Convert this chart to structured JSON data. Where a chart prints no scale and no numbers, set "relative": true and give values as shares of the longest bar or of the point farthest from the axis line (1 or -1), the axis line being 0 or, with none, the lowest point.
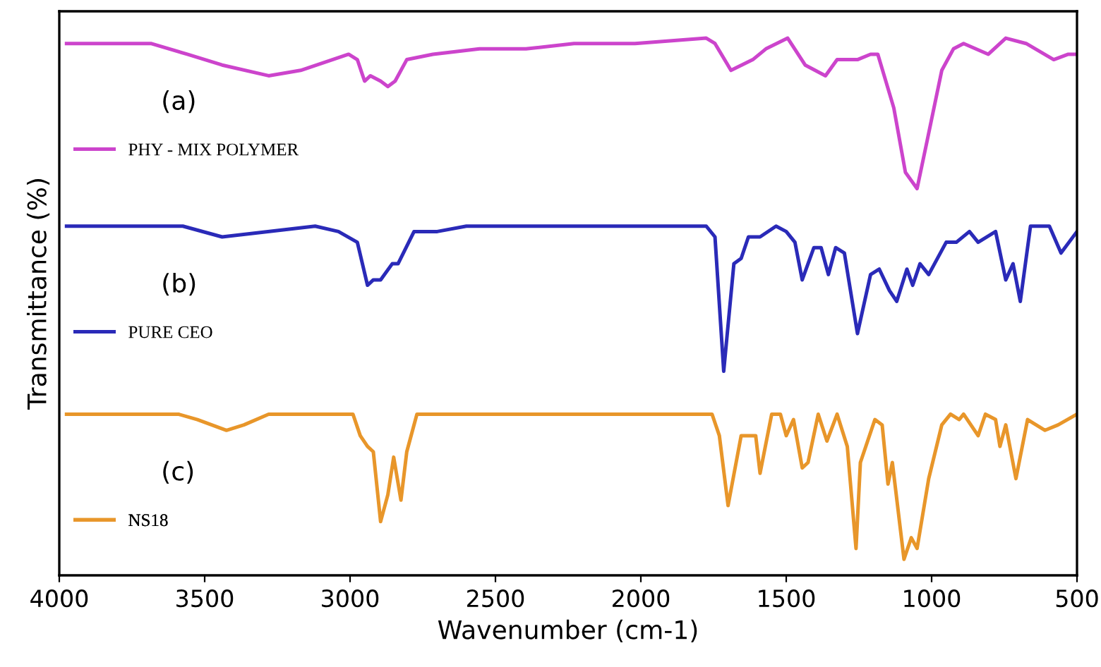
{
  "chart_data": {
    "type": "line",
    "relative": true,
    "xlabel": "Wavenumber (cm-1)",
    "ylabel": "Transmittance (%)",
    "xlim": [
      4000,
      500
    ],
    "xticks": [
      4000,
      3500,
      3000,
      2500,
      2000,
      1500,
      1000,
      500
    ],
    "tick_labels": "x",
    "legend": "left",
    "grid": false,
    "marker": "none",
    "line_style": "solid",
    "annotations": [
      "(a)",
      "(b)",
      "(c)"
    ],
    "series": [
      {
        "name": "PHY - MIX POLYMER",
        "color": "#cc44cc",
        "x": [
          3975,
          3685,
          3560,
          3440,
          3280,
          3170,
          3005,
          2975,
          2950,
          2930,
          2895,
          2870,
          2845,
          2805,
          2715,
          2555,
          2395,
          2230,
          2130,
          2020,
          1775,
          1745,
          1690,
          1615,
          1570,
          1495,
          1435,
          1365,
          1325,
          1255,
          1210,
          1185,
          1130,
          1090,
          1050,
          1015,
          965,
          925,
          890,
          805,
          745,
          675,
          580,
          530,
          500
        ],
        "values": [
          0.99,
          0.99,
          0.97,
          0.95,
          0.93,
          0.94,
          0.97,
          0.96,
          0.92,
          0.93,
          0.92,
          0.91,
          0.92,
          0.96,
          0.97,
          0.98,
          0.98,
          0.99,
          0.99,
          0.99,
          1.0,
          0.99,
          0.94,
          0.96,
          0.98,
          1.0,
          0.95,
          0.93,
          0.96,
          0.96,
          0.97,
          0.97,
          0.87,
          0.75,
          0.72,
          0.81,
          0.94,
          0.98,
          0.99,
          0.97,
          1.0,
          0.99,
          0.96,
          0.97,
          0.97
        ]
      },
      {
        "name": "PURE CEO",
        "color": "#2a2ab8",
        "x": [
          3975,
          3575,
          3440,
          3120,
          3040,
          2975,
          2940,
          2920,
          2895,
          2855,
          2835,
          2780,
          2735,
          2700,
          2600,
          2230,
          1775,
          1745,
          1715,
          1680,
          1655,
          1630,
          1590,
          1535,
          1500,
          1470,
          1445,
          1405,
          1380,
          1355,
          1330,
          1300,
          1255,
          1210,
          1180,
          1145,
          1120,
          1085,
          1065,
          1040,
          1010,
          950,
          915,
          870,
          840,
          780,
          745,
          720,
          695,
          660,
          595,
          555,
          500
        ],
        "values": [
          0.65,
          0.65,
          0.63,
          0.65,
          0.64,
          0.62,
          0.54,
          0.55,
          0.55,
          0.58,
          0.58,
          0.64,
          0.64,
          0.64,
          0.65,
          0.65,
          0.65,
          0.63,
          0.38,
          0.58,
          0.59,
          0.63,
          0.63,
          0.65,
          0.64,
          0.62,
          0.55,
          0.61,
          0.61,
          0.56,
          0.61,
          0.6,
          0.45,
          0.56,
          0.57,
          0.53,
          0.51,
          0.57,
          0.54,
          0.58,
          0.56,
          0.62,
          0.62,
          0.64,
          0.62,
          0.64,
          0.55,
          0.58,
          0.51,
          0.65,
          0.65,
          0.6,
          0.64
        ]
      },
      {
        "name": "NS18",
        "color": "#e8962a",
        "x": [
          3975,
          3590,
          3525,
          3425,
          3365,
          3280,
          3040,
          2990,
          2965,
          2940,
          2920,
          2895,
          2870,
          2850,
          2825,
          2805,
          2770,
          2230,
          2020,
          1755,
          1730,
          1700,
          1655,
          1620,
          1605,
          1590,
          1550,
          1520,
          1500,
          1475,
          1445,
          1425,
          1390,
          1360,
          1325,
          1290,
          1260,
          1245,
          1195,
          1170,
          1150,
          1135,
          1095,
          1070,
          1050,
          1010,
          965,
          935,
          905,
          890,
          840,
          815,
          780,
          765,
          745,
          710,
          670,
          610,
          565,
          500
        ],
        "values": [
          0.3,
          0.3,
          0.29,
          0.27,
          0.28,
          0.3,
          0.3,
          0.3,
          0.26,
          0.24,
          0.23,
          0.1,
          0.15,
          0.22,
          0.14,
          0.23,
          0.3,
          0.3,
          0.3,
          0.3,
          0.26,
          0.13,
          0.26,
          0.26,
          0.26,
          0.19,
          0.3,
          0.3,
          0.26,
          0.29,
          0.2,
          0.21,
          0.3,
          0.25,
          0.3,
          0.24,
          0.05,
          0.21,
          0.29,
          0.28,
          0.17,
          0.21,
          0.03,
          0.07,
          0.05,
          0.18,
          0.28,
          0.3,
          0.29,
          0.3,
          0.26,
          0.3,
          0.29,
          0.24,
          0.28,
          0.18,
          0.29,
          0.27,
          0.28,
          0.3
        ]
      }
    ]
  }
}
